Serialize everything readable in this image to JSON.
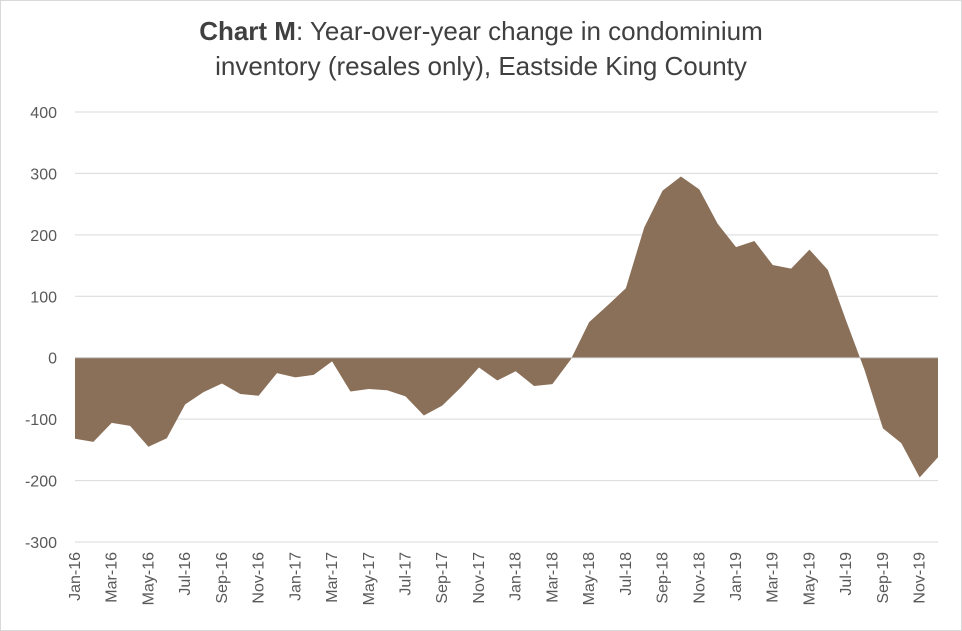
{
  "chart_data": {
    "type": "area",
    "title_bold": "Chart M",
    "title_rest": ": Year-over-year change in condominium",
    "title_line2": "inventory (resales only), Eastside King County",
    "xlabel": "",
    "ylabel": "",
    "ylim": [
      -300,
      400
    ],
    "yticks": [
      400,
      300,
      200,
      100,
      0,
      -100,
      -200,
      -300
    ],
    "grid": true,
    "legend": "none",
    "fill_color": "#8b7059",
    "x": [
      "Jan-16",
      "Feb-16",
      "Mar-16",
      "Apr-16",
      "May-16",
      "Jun-16",
      "Jul-16",
      "Aug-16",
      "Sep-16",
      "Oct-16",
      "Nov-16",
      "Dec-16",
      "Jan-17",
      "Feb-17",
      "Mar-17",
      "Apr-17",
      "May-17",
      "Jun-17",
      "Jul-17",
      "Aug-17",
      "Sep-17",
      "Oct-17",
      "Nov-17",
      "Dec-17",
      "Jan-18",
      "Feb-18",
      "Mar-18",
      "Apr-18",
      "May-18",
      "Jun-18",
      "Jul-18",
      "Aug-18",
      "Sep-18",
      "Oct-18",
      "Nov-18",
      "Dec-18",
      "Jan-19",
      "Feb-19",
      "Mar-19",
      "Apr-19",
      "May-19",
      "Jun-19",
      "Jul-19",
      "Aug-19",
      "Sep-19",
      "Oct-19",
      "Nov-19",
      "Dec-19"
    ],
    "x_tick_labels": [
      "Jan-16",
      "Mar-16",
      "May-16",
      "Jul-16",
      "Sep-16",
      "Nov-16",
      "Jan-17",
      "Mar-17",
      "May-17",
      "Jul-17",
      "Sep-17",
      "Nov-17",
      "Jan-18",
      "Mar-18",
      "May-18",
      "Jul-18",
      "Sep-18",
      "Nov-18",
      "Jan-19",
      "Mar-19",
      "May-19",
      "Jul-19",
      "Sep-19",
      "Nov-19"
    ],
    "values": [
      -132,
      -137,
      -106,
      -111,
      -145,
      -131,
      -76,
      -56,
      -42,
      -59,
      -62,
      -25,
      -32,
      -28,
      -6,
      -55,
      -51,
      -53,
      -63,
      -94,
      -78,
      -49,
      -16,
      -37,
      -22,
      -46,
      -43,
      -3,
      58,
      85,
      113,
      212,
      272,
      295,
      274,
      218,
      180,
      190,
      151,
      145,
      176,
      143,
      60,
      -20,
      -115,
      -139,
      -195,
      -162
    ]
  }
}
